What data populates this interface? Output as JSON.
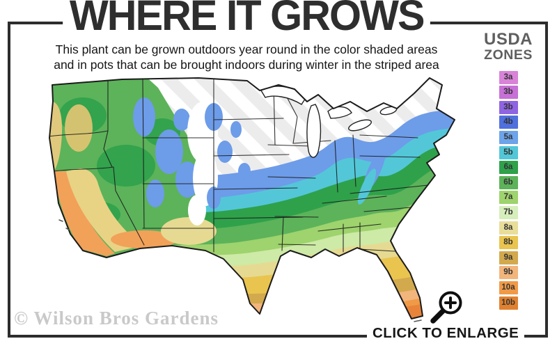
{
  "header": {
    "title": "WHERE IT GROWS",
    "subtitle_line1": "This plant can be grown outdoors year round in the color shaded areas",
    "subtitle_line2": "and in pots that can be brought indoors during winter in the striped area"
  },
  "legend": {
    "title_line1": "USDA",
    "title_line2": "ZONES",
    "zones": [
      {
        "label": "3a",
        "color": "#d883d8"
      },
      {
        "label": "3b",
        "color": "#c770d6"
      },
      {
        "label": "3b",
        "color": "#8f64e0"
      },
      {
        "label": "4b",
        "color": "#4f70dd"
      },
      {
        "label": "5a",
        "color": "#6da3e8"
      },
      {
        "label": "5b",
        "color": "#53c7d8"
      },
      {
        "label": "6a",
        "color": "#2fa14b"
      },
      {
        "label": "6b",
        "color": "#5cb35a"
      },
      {
        "label": "7a",
        "color": "#9ed36d"
      },
      {
        "label": "7b",
        "color": "#d6eebb"
      },
      {
        "label": "8a",
        "color": "#e9dd9a"
      },
      {
        "label": "8b",
        "color": "#e9c44f"
      },
      {
        "label": "9a",
        "color": "#d3a94e"
      },
      {
        "label": "9b",
        "color": "#f2b57c"
      },
      {
        "label": "10a",
        "color": "#f09a47"
      },
      {
        "label": "10b",
        "color": "#e0812f"
      }
    ]
  },
  "map": {
    "description_label": "USDA hardiness zone map of the United States",
    "striped_area_meaning": "striped area"
  },
  "footer": {
    "watermark": "© Wilson Bros Gardens",
    "cta_label": "CLICK TO ENLARGE",
    "cta_icon": "magnifier-zoom-in-icon"
  },
  "colors": {
    "frame": "#2d2d2d",
    "title_text": "#2e2e2e",
    "legend_title": "#5f5f5f",
    "watermark": "#a5a5a5"
  }
}
